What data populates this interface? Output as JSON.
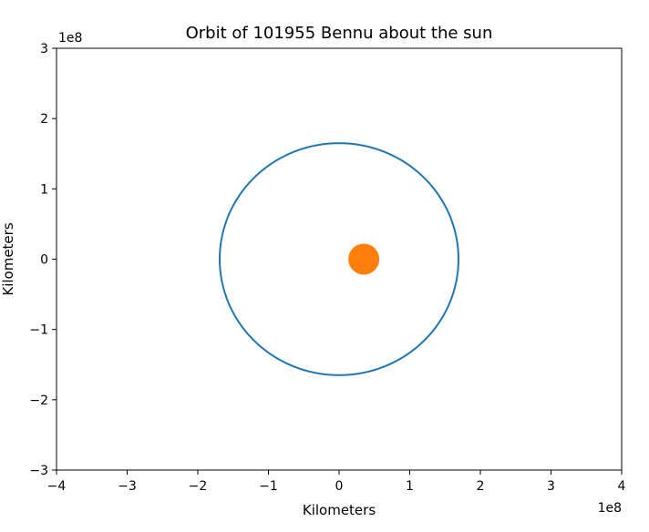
{
  "chart_data": {
    "type": "line",
    "title": "Orbit of 101955 Bennu about the sun",
    "xlabel": "Kilometers",
    "ylabel": "Kilometers",
    "x_offset_label": "1e8",
    "y_offset_label": "1e8",
    "xlim": [
      -4,
      4
    ],
    "ylim": [
      -3,
      3
    ],
    "x_ticks": [
      -4,
      -3,
      -2,
      -1,
      0,
      1,
      2,
      3,
      4
    ],
    "x_tick_labels": [
      "−4",
      "−3",
      "−2",
      "−1",
      "0",
      "1",
      "2",
      "3",
      "4"
    ],
    "y_ticks": [
      -3,
      -2,
      -1,
      0,
      1,
      2,
      3
    ],
    "y_tick_labels": [
      "−3",
      "−2",
      "−1",
      "0",
      "1",
      "2",
      "3"
    ],
    "grid": false,
    "unit_scale": 100000000,
    "series": [
      {
        "kind": "orbit",
        "color": "#1f77b4",
        "center": [
          0,
          0
        ],
        "radius_x": 1.69,
        "radius_y": 1.65
      },
      {
        "kind": "sun",
        "color": "#ff7f0e",
        "x": 0.35,
        "y": 0.0
      }
    ]
  }
}
